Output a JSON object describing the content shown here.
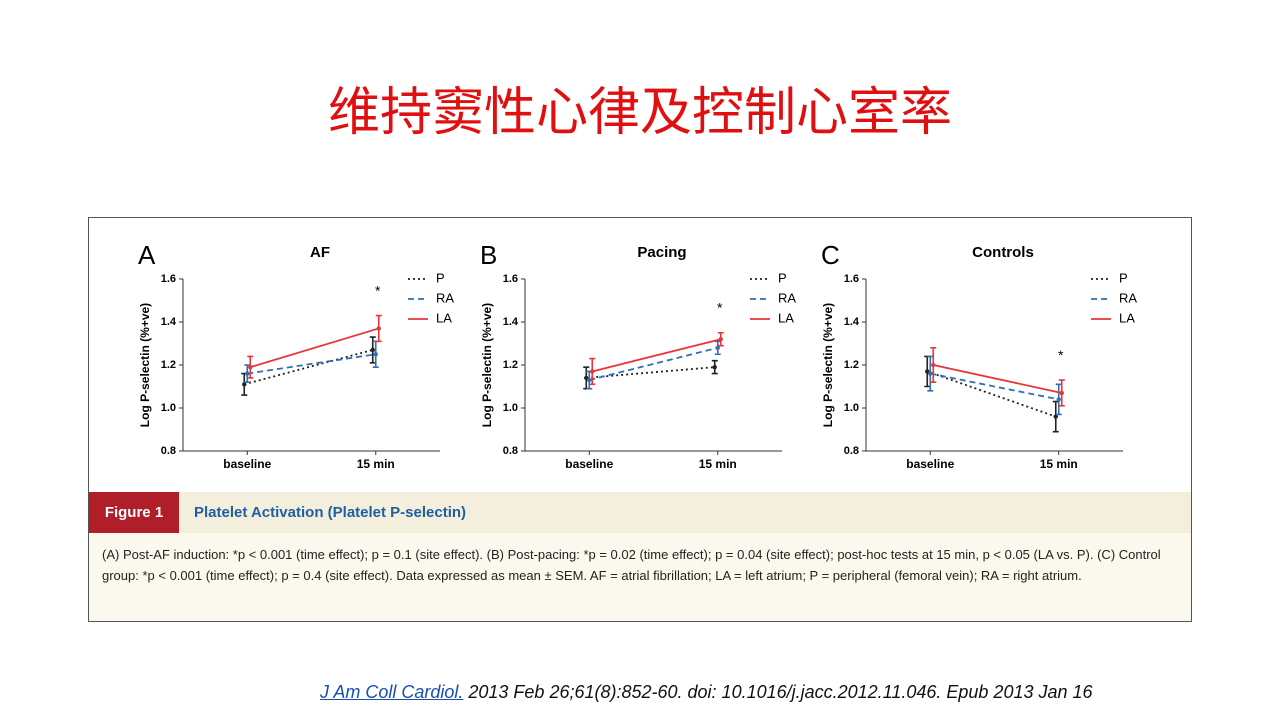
{
  "slide_title": "维持窦性心律及控制心室率",
  "chart_data": [
    {
      "type": "line",
      "panel": "A",
      "title": "AF",
      "y_label": "Log P-selectin (%+ve)",
      "annotation": "*",
      "categories": [
        "baseline",
        "15 min"
      ],
      "ylim": [
        0.8,
        1.6
      ],
      "yticks": [
        0.8,
        {
          "value": 1,
          "label": "1.0"
        },
        1.2,
        1.4,
        1.6
      ],
      "legend": "top-right",
      "series": [
        {
          "name": "P",
          "color": "#222222",
          "linestyle": "dotted",
          "values": [
            1.11,
            1.27
          ],
          "errors": [
            0.05,
            0.06
          ]
        },
        {
          "name": "RA",
          "color": "#2e6fb5",
          "linestyle": "dashed",
          "values": [
            1.16,
            1.25
          ],
          "errors": [
            0.04,
            0.06
          ]
        },
        {
          "name": "LA",
          "color": "#e8343a",
          "linestyle": "solid",
          "values": [
            1.19,
            1.37
          ],
          "errors": [
            0.05,
            0.06
          ]
        }
      ]
    },
    {
      "type": "line",
      "panel": "B",
      "title": "Pacing",
      "y_label": "Log P-selectin (%+ve)",
      "annotation": "*",
      "categories": [
        "baseline",
        "15 min"
      ],
      "ylim": [
        0.8,
        1.6
      ],
      "yticks": [
        0.8,
        {
          "value": 1,
          "label": "1.0"
        },
        1.2,
        1.4,
        1.6
      ],
      "legend": "top-right",
      "series": [
        {
          "name": "P",
          "color": "#222222",
          "linestyle": "dotted",
          "values": [
            1.14,
            1.19
          ],
          "errors": [
            0.05,
            0.03
          ]
        },
        {
          "name": "RA",
          "color": "#2e6fb5",
          "linestyle": "dashed",
          "values": [
            1.13,
            1.28
          ],
          "errors": [
            0.04,
            0.03
          ]
        },
        {
          "name": "LA",
          "color": "#e8343a",
          "linestyle": "solid",
          "values": [
            1.17,
            1.32
          ],
          "errors": [
            0.06,
            0.03
          ]
        }
      ]
    },
    {
      "type": "line",
      "panel": "C",
      "title": "Controls",
      "y_label": "Log P-selectin (%+ve)",
      "annotation": "*",
      "categories": [
        "baseline",
        "15 min"
      ],
      "ylim": [
        0.8,
        1.6
      ],
      "yticks": [
        0.8,
        {
          "value": 1,
          "label": "1.0"
        },
        1.2,
        1.4,
        1.6
      ],
      "legend": "top-right",
      "series": [
        {
          "name": "P",
          "color": "#222222",
          "linestyle": "dotted",
          "values": [
            1.17,
            0.96
          ],
          "errors": [
            0.07,
            0.07
          ]
        },
        {
          "name": "RA",
          "color": "#2e6fb5",
          "linestyle": "dashed",
          "values": [
            1.16,
            1.04
          ],
          "errors": [
            0.08,
            0.07
          ]
        },
        {
          "name": "LA",
          "color": "#e8343a",
          "linestyle": "solid",
          "values": [
            1.2,
            1.07
          ],
          "errors": [
            0.08,
            0.06
          ]
        }
      ]
    }
  ],
  "figure": {
    "label": "Figure 1",
    "title": "Platelet Activation (Platelet P-selectin)",
    "caption": "(A) Post-AF induction: *p < 0.001 (time effect); p = 0.1 (site effect). (B) Post-pacing: *p = 0.02 (time effect); p = 0.04 (site effect); post-hoc tests at 15 min, p < 0.05 (LA vs. P). (C) Control group: *p < 0.001 (time effect); p = 0.4 (site effect). Data expressed as mean ± SEM. AF = atrial fibrillation; LA = left atrium; P = peripheral (femoral vein); RA = right atrium."
  },
  "citation": {
    "journal": "J Am Coll Cardiol.",
    "details": " 2013 Feb 26;61(8):852-60. doi: 10.1016/j.jacc.2012.11.046. Epub 2013 Jan 16"
  }
}
